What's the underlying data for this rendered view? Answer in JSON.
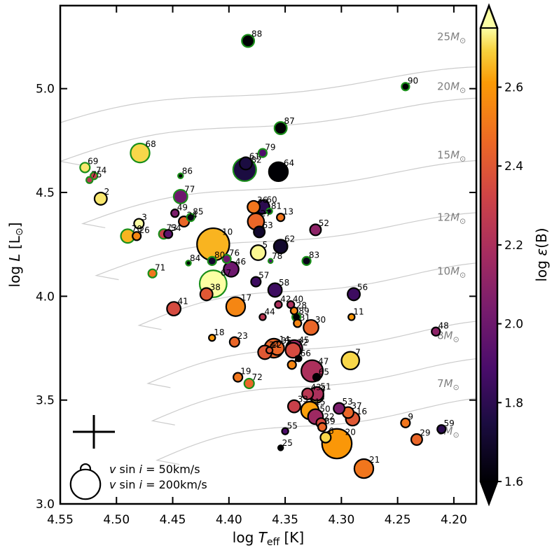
{
  "chart_data": {
    "type": "scatter",
    "xlabel": "log T_eff [K]",
    "ylabel": "log L [L_⊙]",
    "colorbar_label": "log ε(B)",
    "xlim": [
      4.55,
      4.18
    ],
    "ylim": [
      3.0,
      5.4
    ],
    "x_ticks": [
      "4.55",
      "4.50",
      "4.45",
      "4.40",
      "4.35",
      "4.30",
      "4.25",
      "4.20"
    ],
    "y_ticks": [
      "3.0",
      "3.5",
      "4.0",
      "4.5",
      "5.0"
    ],
    "colorbar": {
      "range": [
        1.6,
        2.75
      ],
      "ticks": [
        "1.6",
        "1.8",
        "2.0",
        "2.2",
        "2.4",
        "2.6"
      ],
      "extend": "both"
    },
    "tracks": [
      {
        "label": "25M_⊙",
        "mass": 25
      },
      {
        "label": "20M_⊙",
        "mass": 20
      },
      {
        "label": "15M_⊙",
        "mass": 15
      },
      {
        "label": "12M_⊙",
        "mass": 12
      },
      {
        "label": "10M_⊙",
        "mass": 10
      },
      {
        "label": "8M_⊙",
        "mass": 8
      },
      {
        "label": "7M_⊙",
        "mass": 7
      },
      {
        "label": "6M_⊙",
        "mass": 6
      }
    ],
    "legend": [
      {
        "label": "v sin i = 50km/s",
        "vsini": 50
      },
      {
        "label": "v sin i = 200km/s",
        "vsini": 200
      }
    ],
    "error_bar": "typical uncertainty (cross, lower left)",
    "points": [
      {
        "id": "2",
        "logT": 4.514,
        "logL": 4.47,
        "logeB": 2.72,
        "vsini": 70,
        "green": false
      },
      {
        "id": "3",
        "logT": 4.48,
        "logL": 4.35,
        "logeB": 2.75,
        "vsini": 50,
        "green": false
      },
      {
        "id": "4",
        "logT": 4.322,
        "logL": 3.52,
        "logeB": 2.72,
        "vsini": 80,
        "green": false
      },
      {
        "id": "5",
        "logT": 4.374,
        "logL": 4.21,
        "logeB": 2.74,
        "vsini": 90,
        "green": false
      },
      {
        "id": "6",
        "logT": 4.314,
        "logL": 3.32,
        "logeB": 2.7,
        "vsini": 55,
        "green": false
      },
      {
        "id": "7",
        "logT": 4.292,
        "logL": 3.69,
        "logeB": 2.7,
        "vsini": 110,
        "green": false
      },
      {
        "id": "8",
        "logT": 4.344,
        "logL": 3.67,
        "logeB": 2.55,
        "vsini": 40,
        "green": false
      },
      {
        "id": "9",
        "logT": 4.243,
        "logL": 3.39,
        "logeB": 2.5,
        "vsini": 45,
        "green": false
      },
      {
        "id": "10",
        "logT": 4.414,
        "logL": 4.25,
        "logeB": 2.65,
        "vsini": 220,
        "green": false
      },
      {
        "id": "11",
        "logT": 4.291,
        "logL": 3.9,
        "logeB": 2.6,
        "vsini": 25,
        "green": false
      },
      {
        "id": "12",
        "logT": 4.364,
        "logL": 3.74,
        "logeB": 2.4,
        "vsini": 25,
        "green": false
      },
      {
        "id": "13",
        "logT": 4.354,
        "logL": 4.38,
        "logeB": 2.5,
        "vsini": 35,
        "green": false
      },
      {
        "id": "14",
        "logT": 4.36,
        "logL": 3.75,
        "logeB": 2.45,
        "vsini": 120,
        "green": false
      },
      {
        "id": "15",
        "logT": 4.328,
        "logL": 3.45,
        "logeB": 2.62,
        "vsini": 110,
        "green": false
      },
      {
        "id": "16",
        "logT": 4.29,
        "logL": 3.41,
        "logeB": 2.4,
        "vsini": 80,
        "green": false
      },
      {
        "id": "17",
        "logT": 4.394,
        "logL": 3.95,
        "logeB": 2.55,
        "vsini": 120,
        "green": false
      },
      {
        "id": "18",
        "logT": 4.415,
        "logL": 3.8,
        "logeB": 2.6,
        "vsini": 25,
        "green": false
      },
      {
        "id": "19",
        "logT": 4.392,
        "logL": 3.61,
        "logeB": 2.5,
        "vsini": 45,
        "green": false
      },
      {
        "id": "20",
        "logT": 4.304,
        "logL": 3.29,
        "logeB": 2.6,
        "vsini": 200,
        "green": false
      },
      {
        "id": "21",
        "logT": 4.28,
        "logL": 3.17,
        "logeB": 2.5,
        "vsini": 120,
        "green": false
      },
      {
        "id": "22",
        "logT": 4.318,
        "logL": 3.39,
        "logeB": 2.35,
        "vsini": 50,
        "green": false
      },
      {
        "id": "23",
        "logT": 4.395,
        "logL": 3.78,
        "logeB": 2.45,
        "vsini": 50,
        "green": false
      },
      {
        "id": "24",
        "logT": 4.44,
        "logL": 4.36,
        "logeB": 2.45,
        "vsini": 55,
        "green": false
      },
      {
        "id": "25",
        "logT": 4.354,
        "logL": 3.27,
        "logeB": 1.6,
        "vsini": 15,
        "green": false
      },
      {
        "id": "26",
        "logT": 4.482,
        "logL": 4.29,
        "logeB": 2.55,
        "vsini": 40,
        "green": false
      },
      {
        "id": "27",
        "logT": 4.376,
        "logL": 4.36,
        "logeB": 2.45,
        "vsini": 100,
        "green": false
      },
      {
        "id": "28",
        "logT": 4.342,
        "logL": 3.93,
        "logeB": 2.55,
        "vsini": 30,
        "green": false
      },
      {
        "id": "29",
        "logT": 4.233,
        "logL": 3.31,
        "logeB": 2.45,
        "vsini": 60,
        "green": false
      },
      {
        "id": "30",
        "logT": 4.327,
        "logL": 3.85,
        "logeB": 2.45,
        "vsini": 90,
        "green": false
      },
      {
        "id": "31",
        "logT": 4.339,
        "logL": 3.87,
        "logeB": 2.55,
        "vsini": 35,
        "green": false
      },
      {
        "id": "32",
        "logT": 4.343,
        "logL": 3.74,
        "logeB": 2.35,
        "vsini": 90,
        "green": false
      },
      {
        "id": "33",
        "logT": 4.342,
        "logL": 3.47,
        "logeB": 2.3,
        "vsini": 70,
        "green": false
      },
      {
        "id": "34",
        "logT": 4.368,
        "logL": 3.73,
        "logeB": 2.4,
        "vsini": 80,
        "green": false
      },
      {
        "id": "35",
        "logT": 4.357,
        "logL": 3.75,
        "logeB": 2.45,
        "vsini": 80,
        "green": false
      },
      {
        "id": "36",
        "logT": 4.378,
        "logL": 4.43,
        "logeB": 2.5,
        "vsini": 70,
        "green": false
      },
      {
        "id": "37",
        "logT": 4.294,
        "logL": 3.44,
        "logeB": 2.45,
        "vsini": 60,
        "green": false
      },
      {
        "id": "38",
        "logT": 4.42,
        "logL": 4.01,
        "logeB": 2.4,
        "vsini": 70,
        "green": false
      },
      {
        "id": "39",
        "logT": 4.317,
        "logL": 3.37,
        "logeB": 2.45,
        "vsini": 40,
        "green": false
      },
      {
        "id": "40",
        "logT": 4.345,
        "logL": 3.96,
        "logeB": 2.2,
        "vsini": 30,
        "green": false
      },
      {
        "id": "41",
        "logT": 4.449,
        "logL": 3.94,
        "logeB": 2.35,
        "vsini": 80,
        "green": false
      },
      {
        "id": "42",
        "logT": 4.356,
        "logL": 3.96,
        "logeB": 2.2,
        "vsini": 30,
        "green": false
      },
      {
        "id": "43",
        "logT": 4.33,
        "logL": 3.53,
        "logeB": 2.25,
        "vsini": 60,
        "green": false
      },
      {
        "id": "44",
        "logT": 4.37,
        "logL": 3.9,
        "logeB": 2.25,
        "vsini": 25,
        "green": false
      },
      {
        "id": "45",
        "logT": 4.342,
        "logL": 3.75,
        "logeB": 2.15,
        "vsini": 100,
        "green": false
      },
      {
        "id": "46",
        "logT": 4.398,
        "logL": 4.13,
        "logeB": 2.0,
        "vsini": 90,
        "green": false
      },
      {
        "id": "47",
        "logT": 4.326,
        "logL": 3.64,
        "logeB": 2.2,
        "vsini": 140,
        "green": false
      },
      {
        "id": "48",
        "logT": 4.216,
        "logL": 3.83,
        "logeB": 2.1,
        "vsini": 40,
        "green": false
      },
      {
        "id": "49",
        "logT": 4.448,
        "logL": 4.4,
        "logeB": 2.05,
        "vsini": 35,
        "green": false
      },
      {
        "id": "50",
        "logT": 4.323,
        "logL": 3.42,
        "logeB": 2.15,
        "vsini": 90,
        "green": false
      },
      {
        "id": "51",
        "logT": 4.322,
        "logL": 3.53,
        "logeB": 2.2,
        "vsini": 80,
        "green": false
      },
      {
        "id": "52",
        "logT": 4.323,
        "logL": 4.32,
        "logeB": 2.1,
        "vsini": 60,
        "green": false
      },
      {
        "id": "53",
        "logT": 4.302,
        "logL": 3.46,
        "logeB": 2.05,
        "vsini": 60,
        "green": false
      },
      {
        "id": "54",
        "logT": 4.454,
        "logL": 4.3,
        "logeB": 1.95,
        "vsini": 40,
        "green": false
      },
      {
        "id": "55",
        "logT": 4.35,
        "logL": 3.35,
        "logeB": 1.9,
        "vsini": 25,
        "green": false
      },
      {
        "id": "56",
        "logT": 4.289,
        "logL": 4.01,
        "logeB": 1.85,
        "vsini": 70,
        "green": false
      },
      {
        "id": "57",
        "logT": 4.376,
        "logL": 4.07,
        "logeB": 1.85,
        "vsini": 50,
        "green": false
      },
      {
        "id": "58",
        "logT": 4.359,
        "logL": 4.03,
        "logeB": 1.85,
        "vsini": 80,
        "green": false
      },
      {
        "id": "59",
        "logT": 4.211,
        "logL": 3.36,
        "logeB": 1.8,
        "vsini": 40,
        "green": false
      },
      {
        "id": "60",
        "logT": 4.37,
        "logL": 4.43,
        "logeB": 1.8,
        "vsini": 80,
        "green": false
      },
      {
        "id": "61",
        "logT": 4.385,
        "logL": 4.64,
        "logeB": 1.75,
        "vsini": 70,
        "green": false
      },
      {
        "id": "62",
        "logT": 4.354,
        "logL": 4.24,
        "logeB": 1.7,
        "vsini": 80,
        "green": false
      },
      {
        "id": "63",
        "logT": 4.373,
        "logL": 4.31,
        "logeB": 1.7,
        "vsini": 60,
        "green": false
      },
      {
        "id": "64",
        "logT": 4.356,
        "logL": 4.6,
        "logeB": 1.6,
        "vsini": 120,
        "green": false
      },
      {
        "id": "65",
        "logT": 4.322,
        "logL": 3.61,
        "logeB": 1.6,
        "vsini": 30,
        "green": false
      },
      {
        "id": "66",
        "logT": 4.338,
        "logL": 3.7,
        "logeB": 1.6,
        "vsini": 20,
        "green": false
      },
      {
        "id": "67",
        "logT": 4.414,
        "logL": 4.06,
        "logeB": 2.75,
        "vsini": 180,
        "green": true
      },
      {
        "id": "68",
        "logT": 4.479,
        "logL": 4.69,
        "logeB": 2.7,
        "vsini": 120,
        "green": true
      },
      {
        "id": "69",
        "logT": 4.528,
        "logL": 4.62,
        "logeB": 2.72,
        "vsini": 50,
        "green": true
      },
      {
        "id": "70",
        "logT": 4.49,
        "logL": 4.29,
        "logeB": 2.65,
        "vsini": 80,
        "green": true
      },
      {
        "id": "71",
        "logT": 4.468,
        "logL": 4.11,
        "logeB": 2.5,
        "vsini": 40,
        "green": true
      },
      {
        "id": "72",
        "logT": 4.382,
        "logL": 3.58,
        "logeB": 2.45,
        "vsini": 50,
        "green": true
      },
      {
        "id": "73",
        "logT": 4.458,
        "logL": 4.3,
        "logeB": 2.3,
        "vsini": 50,
        "green": true
      },
      {
        "id": "74",
        "logT": 4.52,
        "logL": 4.58,
        "logeB": 2.3,
        "vsini": 30,
        "green": true
      },
      {
        "id": "75",
        "logT": 4.524,
        "logL": 4.56,
        "logeB": 2.25,
        "vsini": 25,
        "green": true
      },
      {
        "id": "76",
        "logT": 4.402,
        "logL": 4.18,
        "logeB": 2.0,
        "vsini": 40,
        "green": true
      },
      {
        "id": "77",
        "logT": 4.443,
        "logL": 4.48,
        "logeB": 2.0,
        "vsini": 80,
        "green": true
      },
      {
        "id": "78",
        "logT": 4.363,
        "logL": 4.17,
        "logeB": 1.9,
        "vsini": 10,
        "green": true
      },
      {
        "id": "79",
        "logT": 4.37,
        "logL": 4.69,
        "logeB": 1.9,
        "vsini": 40,
        "green": true
      },
      {
        "id": "80",
        "logT": 4.415,
        "logL": 4.17,
        "logeB": 1.7,
        "vsini": 40,
        "green": true
      },
      {
        "id": "81",
        "logT": 4.364,
        "logL": 4.41,
        "logeB": 1.7,
        "vsini": 20,
        "green": true
      },
      {
        "id": "82",
        "logT": 4.386,
        "logL": 4.61,
        "logeB": 1.75,
        "vsini": 150,
        "green": true
      },
      {
        "id": "83",
        "logT": 4.331,
        "logL": 4.17,
        "logeB": 1.65,
        "vsini": 40,
        "green": true
      },
      {
        "id": "84",
        "logT": 4.436,
        "logL": 4.16,
        "logeB": 1.6,
        "vsini": 15,
        "green": true
      },
      {
        "id": "85",
        "logT": 4.434,
        "logL": 4.38,
        "logeB": 1.65,
        "vsini": 35,
        "green": true
      },
      {
        "id": "86",
        "logT": 4.443,
        "logL": 4.58,
        "logeB": 1.6,
        "vsini": 15,
        "green": true
      },
      {
        "id": "87",
        "logT": 4.354,
        "logL": 4.81,
        "logeB": 1.6,
        "vsini": 70,
        "green": true
      },
      {
        "id": "88",
        "logT": 4.383,
        "logL": 5.23,
        "logeB": 1.6,
        "vsini": 70,
        "green": true
      },
      {
        "id": "89",
        "logT": 4.34,
        "logL": 3.9,
        "logeB": 1.6,
        "vsini": 40,
        "green": true
      },
      {
        "id": "90",
        "logT": 4.243,
        "logL": 5.01,
        "logeB": 1.6,
        "vsini": 35,
        "green": true
      }
    ]
  }
}
